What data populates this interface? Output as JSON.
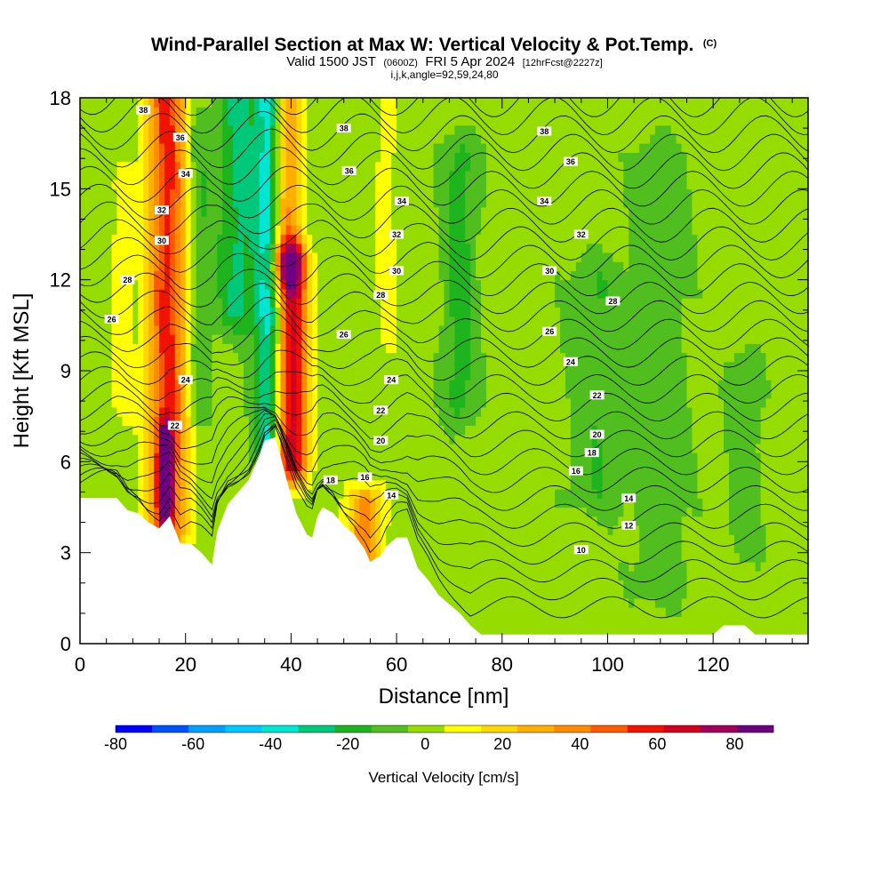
{
  "chart_data": {
    "type": "heatmap",
    "title": "Wind-Parallel Section at Max W: Vertical Velocity & Pot.Temp.",
    "title_suffix": "(C)",
    "subtitle_main": "Valid 1500 JST",
    "subtitle_utc": "(0600Z)",
    "subtitle_date": "FRI 5 Apr 2024",
    "subtitle_fcst": "[12hrFcst@2227z]",
    "subtitle2": "i,j,k,angle=92,59,24,80",
    "xlabel": "Distance [nm]",
    "ylabel": "Height [Kft MSL]",
    "xlim": [
      0,
      138
    ],
    "ylim": [
      0,
      18
    ],
    "x_ticks": [
      0,
      20,
      40,
      60,
      80,
      100,
      120
    ],
    "y_ticks": [
      0,
      3,
      6,
      9,
      12,
      15,
      18
    ],
    "colorbar": {
      "label": "Vertical Velocity [cm/s]",
      "levels": [
        -80,
        -70,
        -60,
        -50,
        -40,
        -30,
        -20,
        -10,
        0,
        10,
        20,
        30,
        40,
        50,
        60,
        70,
        80,
        90
      ],
      "colors": [
        "#0000ff",
        "#0050ff",
        "#00a0ff",
        "#00c8ff",
        "#00e6d2",
        "#00c87a",
        "#1eb41e",
        "#50be1e",
        "#96dc00",
        "#ffff00",
        "#ffd700",
        "#ffaf00",
        "#ff8c00",
        "#ff5a00",
        "#f01400",
        "#d2001e",
        "#a0005a",
        "#6e0082"
      ],
      "tick_values": [
        -80,
        -60,
        -40,
        -20,
        0,
        20,
        40,
        60,
        80
      ],
      "tick_labels": [
        "-80",
        "-60",
        "-40",
        "-20",
        "0",
        "20",
        "40",
        "60",
        "80"
      ]
    },
    "terrain": [
      [
        0,
        4.8
      ],
      [
        7,
        4.8
      ],
      [
        9,
        4.4
      ],
      [
        11,
        4.3
      ],
      [
        13,
        4.0
      ],
      [
        15,
        3.8
      ],
      [
        17,
        4.2
      ],
      [
        19,
        3.3
      ],
      [
        21,
        3.3
      ],
      [
        23,
        3.0
      ],
      [
        25,
        2.6
      ],
      [
        26,
        3.7
      ],
      [
        28,
        4.6
      ],
      [
        30,
        5.0
      ],
      [
        32,
        5.4
      ],
      [
        34,
        6.2
      ],
      [
        35,
        6.7
      ],
      [
        37,
        6.8
      ],
      [
        38,
        6.2
      ],
      [
        39,
        5.5
      ],
      [
        41,
        4.3
      ],
      [
        43,
        3.6
      ],
      [
        44,
        3.5
      ],
      [
        45,
        4.2
      ],
      [
        46,
        4.5
      ],
      [
        48,
        4.3
      ],
      [
        50,
        3.9
      ],
      [
        52,
        3.6
      ],
      [
        54,
        3.1
      ],
      [
        55,
        2.7
      ],
      [
        57,
        2.9
      ],
      [
        58,
        3.2
      ],
      [
        60,
        3.5
      ],
      [
        62,
        3.5
      ],
      [
        64,
        2.5
      ],
      [
        66,
        2.1
      ],
      [
        68,
        1.6
      ],
      [
        70,
        1.3
      ],
      [
        72,
        1.0
      ],
      [
        74,
        0.6
      ],
      [
        76,
        0.3
      ],
      [
        96,
        0.3
      ],
      [
        98,
        0.3
      ],
      [
        120,
        0.3
      ],
      [
        122,
        0.6
      ],
      [
        126,
        0.6
      ],
      [
        128,
        0.3
      ],
      [
        138,
        0.3
      ]
    ],
    "w_features": [
      {
        "x": 16.5,
        "y0": 3.8,
        "y1": 18,
        "w": 3.8,
        "peak": 60
      },
      {
        "x": 16.2,
        "y0": 4.8,
        "y1": 6.5,
        "w": 1.2,
        "peak": 88
      },
      {
        "x": 40.0,
        "y0": 6.0,
        "y1": 12.5,
        "w": 3.2,
        "peak": 75
      },
      {
        "x": 39.0,
        "y0": 12.5,
        "y1": 18,
        "w": 3.0,
        "peak": 45
      },
      {
        "x": 54.0,
        "y0": 2.7,
        "y1": 4.5,
        "w": 3.2,
        "peak": 45
      },
      {
        "x": 36.0,
        "y0": 6.8,
        "y1": 18,
        "w": 2.6,
        "peak": -45
      },
      {
        "x": 30.0,
        "y0": 11.0,
        "y1": 18,
        "w": 4.0,
        "peak": -25
      },
      {
        "x": 22.5,
        "y0": 8.0,
        "y1": 17,
        "w": 2.0,
        "peak": -15
      },
      {
        "x": 72.0,
        "y0": 8.0,
        "y1": 16,
        "w": 3.0,
        "peak": -18
      },
      {
        "x": 98.0,
        "y0": 5.0,
        "y1": 12,
        "w": 5.0,
        "peak": -12
      },
      {
        "x": 110.0,
        "y0": 2.0,
        "y1": 16,
        "w": 5.0,
        "peak": -10
      },
      {
        "x": 126.0,
        "y0": 3.5,
        "y1": 9,
        "w": 3.0,
        "peak": -10
      },
      {
        "x": 8.0,
        "y0": 8.0,
        "y1": 15,
        "w": 2.0,
        "peak": 15
      },
      {
        "x": 58.0,
        "y0": 10.0,
        "y1": 18,
        "w": 3.0,
        "peak": 10
      }
    ],
    "theta_levels": [
      10,
      11,
      12,
      13,
      14,
      15,
      16,
      17,
      18,
      19,
      20,
      21,
      22,
      23,
      24,
      25,
      26,
      27,
      28,
      29,
      30,
      31,
      32,
      33,
      34,
      35,
      36,
      37,
      38
    ],
    "theta_labels": [
      {
        "text": "38",
        "x": 12,
        "y": 17.6
      },
      {
        "text": "36",
        "x": 19,
        "y": 16.7
      },
      {
        "text": "34",
        "x": 20,
        "y": 15.5
      },
      {
        "text": "32",
        "x": 15.5,
        "y": 14.3
      },
      {
        "text": "30",
        "x": 15.5,
        "y": 13.3
      },
      {
        "text": "28",
        "x": 9,
        "y": 12.0
      },
      {
        "text": "26",
        "x": 6,
        "y": 10.7
      },
      {
        "text": "24",
        "x": 20,
        "y": 8.7
      },
      {
        "text": "22",
        "x": 18,
        "y": 7.2
      },
      {
        "text": "38",
        "x": 50,
        "y": 17.0
      },
      {
        "text": "36",
        "x": 51,
        "y": 15.6
      },
      {
        "text": "34",
        "x": 61,
        "y": 14.6
      },
      {
        "text": "32",
        "x": 60,
        "y": 13.5
      },
      {
        "text": "30",
        "x": 60,
        "y": 12.3
      },
      {
        "text": "28",
        "x": 57,
        "y": 11.5
      },
      {
        "text": "26",
        "x": 50,
        "y": 10.2
      },
      {
        "text": "24",
        "x": 59,
        "y": 8.7
      },
      {
        "text": "22",
        "x": 57,
        "y": 7.7
      },
      {
        "text": "20",
        "x": 57,
        "y": 6.7
      },
      {
        "text": "18",
        "x": 47.5,
        "y": 5.4
      },
      {
        "text": "16",
        "x": 54,
        "y": 5.5
      },
      {
        "text": "14",
        "x": 59,
        "y": 4.9
      },
      {
        "text": "38",
        "x": 88,
        "y": 16.9
      },
      {
        "text": "36",
        "x": 93,
        "y": 15.9
      },
      {
        "text": "34",
        "x": 88,
        "y": 14.6
      },
      {
        "text": "32",
        "x": 95,
        "y": 13.5
      },
      {
        "text": "30",
        "x": 89,
        "y": 12.3
      },
      {
        "text": "28",
        "x": 101,
        "y": 11.3
      },
      {
        "text": "26",
        "x": 89,
        "y": 10.3
      },
      {
        "text": "24",
        "x": 93,
        "y": 9.3
      },
      {
        "text": "22",
        "x": 98,
        "y": 8.2
      },
      {
        "text": "20",
        "x": 98,
        "y": 6.9
      },
      {
        "text": "18",
        "x": 97,
        "y": 6.3
      },
      {
        "text": "16",
        "x": 94,
        "y": 5.7
      },
      {
        "text": "14",
        "x": 104,
        "y": 4.8
      },
      {
        "text": "12",
        "x": 104,
        "y": 3.9
      },
      {
        "text": "10",
        "x": 95,
        "y": 3.1
      }
    ]
  }
}
